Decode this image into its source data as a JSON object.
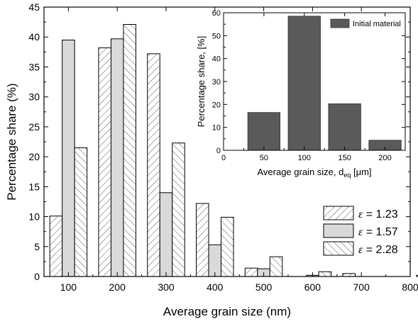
{
  "chart_data": [
    {
      "type": "bar",
      "xlabel": "Average grain size (nm)",
      "ylabel": "Percentage share (%)",
      "xlim": [
        50,
        800
      ],
      "ylim": [
        0,
        45
      ],
      "xticks": [
        100,
        200,
        300,
        400,
        500,
        600,
        700,
        800
      ],
      "yticks": [
        0,
        5,
        10,
        15,
        20,
        25,
        30,
        35,
        40,
        45
      ],
      "categories": [
        100,
        200,
        300,
        400,
        500,
        600,
        700,
        800
      ],
      "series": [
        {
          "name": "= 1.23",
          "symbol": "ε",
          "pattern": "hatch-forward",
          "values": [
            10.1,
            38.2,
            37.2,
            12.2,
            1.4,
            0.0,
            0.5,
            0.0
          ]
        },
        {
          "name": "= 1.57",
          "symbol": "ε",
          "pattern": "solid-light",
          "color": "#d9d9d9",
          "values": [
            39.5,
            39.7,
            14.0,
            5.3,
            1.3,
            0.2,
            0.0,
            0.0
          ]
        },
        {
          "name": "= 2.28",
          "symbol": "ε",
          "pattern": "hatch-backward",
          "values": [
            21.5,
            42.1,
            22.3,
            9.9,
            3.3,
            0.8,
            0.0,
            0.2
          ]
        }
      ],
      "legend_position": "bottom-right"
    },
    {
      "type": "bar",
      "xlabel_main": "Average grain size, d",
      "xlabel_sub": "eq",
      "xlabel_unit": " [μm]",
      "ylabel": "Percentage share, [%]",
      "xlim": [
        0,
        225
      ],
      "ylim": [
        0,
        60
      ],
      "xticks": [
        0,
        50,
        100,
        150,
        200
      ],
      "yticks": [
        0,
        10,
        20,
        30,
        40,
        50,
        60
      ],
      "categories": [
        50,
        100,
        150,
        200
      ],
      "series": [
        {
          "name": "Initial material",
          "color": "#5a5a5a",
          "values": [
            16.5,
            58.5,
            20.3,
            4.4
          ]
        }
      ],
      "legend_position": "top-right"
    }
  ]
}
